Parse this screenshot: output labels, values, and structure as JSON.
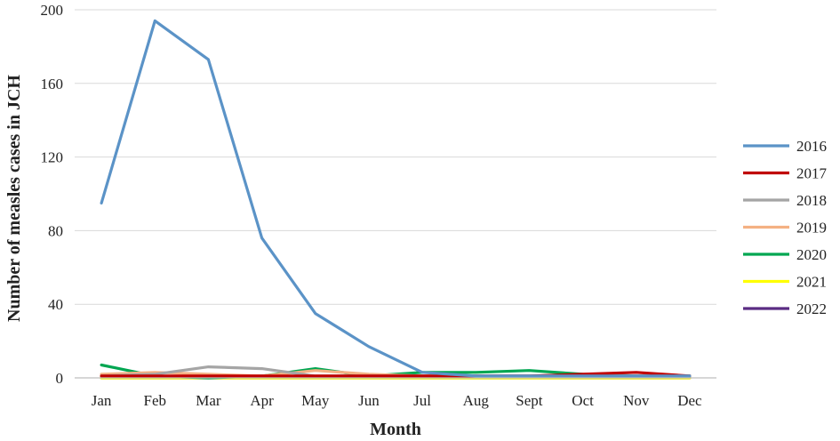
{
  "chart_data": {
    "type": "line",
    "xlabel": "Month",
    "ylabel": "Number of measles cases in JCH",
    "categories": [
      "Jan",
      "Feb",
      "Mar",
      "Apr",
      "May",
      "Jun",
      "Jul",
      "Aug",
      "Sept",
      "Oct",
      "Nov",
      "Dec"
    ],
    "ylim": [
      0,
      200
    ],
    "yticks": [
      0,
      40,
      80,
      120,
      160,
      200
    ],
    "grid": true,
    "legend_position": "right",
    "series": [
      {
        "name": "2016",
        "color": "#5b93c7",
        "values": [
          95,
          194,
          173,
          76,
          35,
          17,
          3,
          1,
          1,
          1,
          1,
          1
        ]
      },
      {
        "name": "2017",
        "color": "#c00000",
        "values": [
          1,
          1,
          1,
          1,
          1,
          1,
          1,
          1,
          1,
          2,
          3,
          1
        ]
      },
      {
        "name": "2018",
        "color": "#a5a5a5",
        "values": [
          1,
          2,
          6,
          5,
          1,
          1,
          1,
          1,
          1,
          1,
          1,
          1
        ]
      },
      {
        "name": "2019",
        "color": "#f4b183",
        "values": [
          2,
          3,
          2,
          1,
          4,
          2,
          1,
          1,
          1,
          1,
          1,
          1
        ]
      },
      {
        "name": "2020",
        "color": "#00a651",
        "values": [
          7,
          1,
          0,
          1,
          5,
          1,
          3,
          3,
          4,
          2,
          1,
          1
        ]
      },
      {
        "name": "2021",
        "color": "#ffff00",
        "values": [
          0,
          0,
          0,
          0,
          0,
          0,
          0,
          0,
          0,
          0,
          0,
          0
        ]
      },
      {
        "name": "2022",
        "color": "#5b2c83",
        "values": [
          0,
          0,
          0,
          0,
          0,
          0,
          0,
          0,
          0,
          0,
          0,
          0
        ]
      }
    ]
  }
}
